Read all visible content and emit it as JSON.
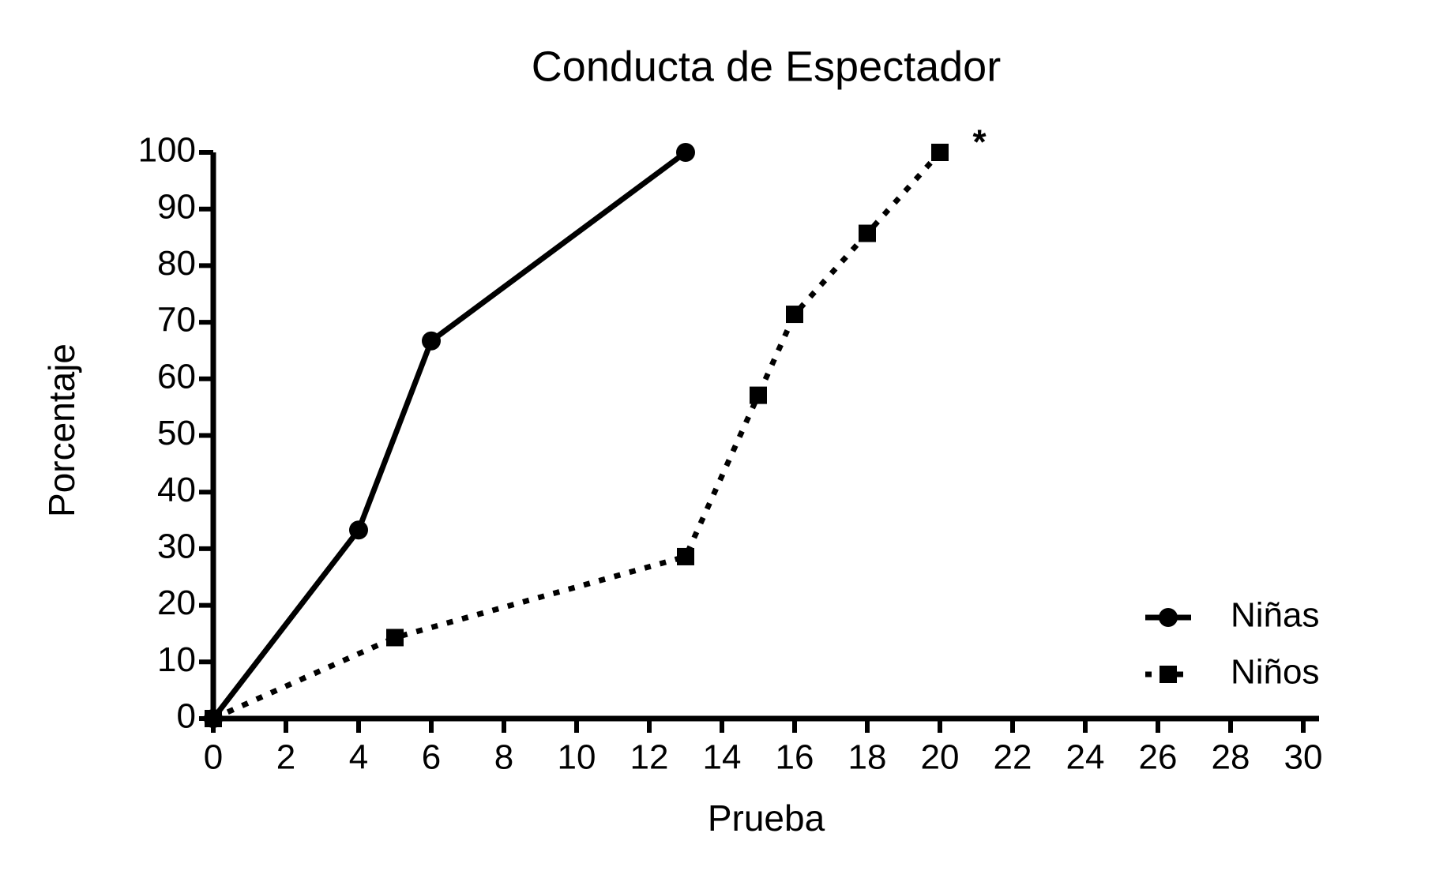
{
  "chart_data": {
    "type": "line",
    "title": "Conducta de Espectador",
    "xlabel": "Prueba",
    "ylabel": "Porcentaje",
    "annotations": [
      "*"
    ],
    "series": [
      {
        "name": "Niñas",
        "color": "#000000",
        "marker": "circle",
        "linestyle": "solid",
        "x": [
          0,
          4,
          6,
          13
        ],
        "values": [
          0,
          33.3,
          66.7,
          100
        ]
      },
      {
        "name": "Niños",
        "color": "#000000",
        "marker": "square",
        "linestyle": "dotted",
        "x": [
          0,
          5,
          13,
          15,
          16,
          18,
          20
        ],
        "values": [
          0,
          14.3,
          28.6,
          57.1,
          71.4,
          85.7,
          100
        ]
      }
    ],
    "xlim": [
      0,
      30
    ],
    "xticks": [
      0,
      2,
      4,
      6,
      8,
      10,
      12,
      14,
      16,
      18,
      20,
      22,
      24,
      26,
      28,
      30
    ],
    "ylim": [
      0,
      100
    ],
    "yticks": [
      0,
      10,
      20,
      30,
      40,
      50,
      60,
      70,
      80,
      90,
      100
    ],
    "legend": "lower right",
    "grid": false
  }
}
